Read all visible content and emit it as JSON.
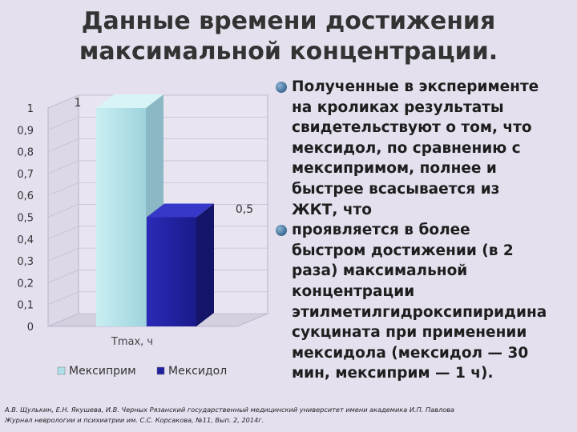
{
  "title": {
    "line1": "Данные времени достижения",
    "line2": "максимальной концентрации."
  },
  "bullets": [
    {
      "lines": [
        "Полученные в эксперименте",
        "на кроликах результаты",
        "свидетельствуют о том, что",
        "мексидол, по сравнению с",
        "мексипримом, полнее и",
        "быстрее всасывается из",
        "ЖКТ, что"
      ]
    },
    {
      "lines": [
        "проявляется в более",
        "быстром достижении (в 2",
        "раза) максимальной",
        "концентрации",
        "этилметилгидроксипиридина",
        "сукцината при применении",
        "мексидола  (мексидол — 30",
        "мин, мексиприм — 1 ч)."
      ]
    }
  ],
  "footer": {
    "line1": "А.В. Щулькин, Е.Н. Якушева, И.В. Черных Рязанский государственный медицинский университет имени академика И.П. Павлова",
    "line2": "Журнал неврологии и психиатрии им. С.С. Корсакова, №11, Вып. 2, 2014г."
  },
  "chart_data": {
    "type": "bar",
    "categories": [
      "Tmax, ч"
    ],
    "series": [
      {
        "name": "Мексиприм",
        "values": [
          1
        ],
        "color": "#aee0e8"
      },
      {
        "name": "Мексидол",
        "values": [
          0.5
        ],
        "color": "#2020a0"
      }
    ],
    "data_labels": [
      "1",
      "0,5"
    ],
    "xlabel": "Tmax, ч",
    "ylim": [
      0,
      1
    ],
    "yticks": [
      "0",
      "0,1",
      "0,2",
      "0,3",
      "0,4",
      "0,5",
      "0,6",
      "0,7",
      "0,8",
      "0,9",
      "1"
    ],
    "legend": "bottom",
    "style": "3d"
  }
}
